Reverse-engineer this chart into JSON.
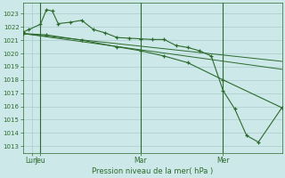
{
  "background_color": "#cce8e8",
  "grid_color": "#aacccc",
  "line_color": "#2d6a2d",
  "xlabel": "Pression niveau de la mer( hPa )",
  "ylim": [
    1012.5,
    1023.8
  ],
  "yticks": [
    1013,
    1014,
    1015,
    1016,
    1017,
    1018,
    1019,
    1020,
    1021,
    1022,
    1023
  ],
  "xlim": [
    0,
    22
  ],
  "x_vlines": [
    1.5,
    10,
    17
  ],
  "x_tick_positions": [
    0.75,
    1.5,
    10,
    17
  ],
  "x_tick_labels": [
    "Lun",
    "Jeu",
    "Mar",
    "Mer"
  ],
  "series1_x": [
    0,
    0.5,
    1.5,
    2,
    2.5,
    3,
    4,
    5,
    6,
    7,
    8,
    9,
    10,
    11,
    12,
    13,
    14,
    15,
    16,
    17,
    18,
    19,
    20,
    22
  ],
  "series1_y": [
    1021.6,
    1021.8,
    1022.2,
    1023.3,
    1023.2,
    1022.25,
    1022.35,
    1022.5,
    1021.8,
    1021.55,
    1021.2,
    1021.15,
    1021.1,
    1021.05,
    1021.05,
    1020.6,
    1020.45,
    1020.2,
    1019.8,
    1017.2,
    1015.8,
    1013.8,
    1013.3,
    1015.9
  ],
  "series2_x": [
    0,
    2,
    5,
    8,
    10,
    12,
    14,
    17,
    22
  ],
  "series2_y": [
    1021.5,
    1021.4,
    1021.0,
    1020.5,
    1020.2,
    1019.8,
    1019.3,
    1018.0,
    1015.9
  ],
  "series3_x": [
    0,
    22
  ],
  "series3_y": [
    1021.5,
    1018.8
  ],
  "series4_x": [
    0,
    22
  ],
  "series4_y": [
    1021.5,
    1019.4
  ]
}
